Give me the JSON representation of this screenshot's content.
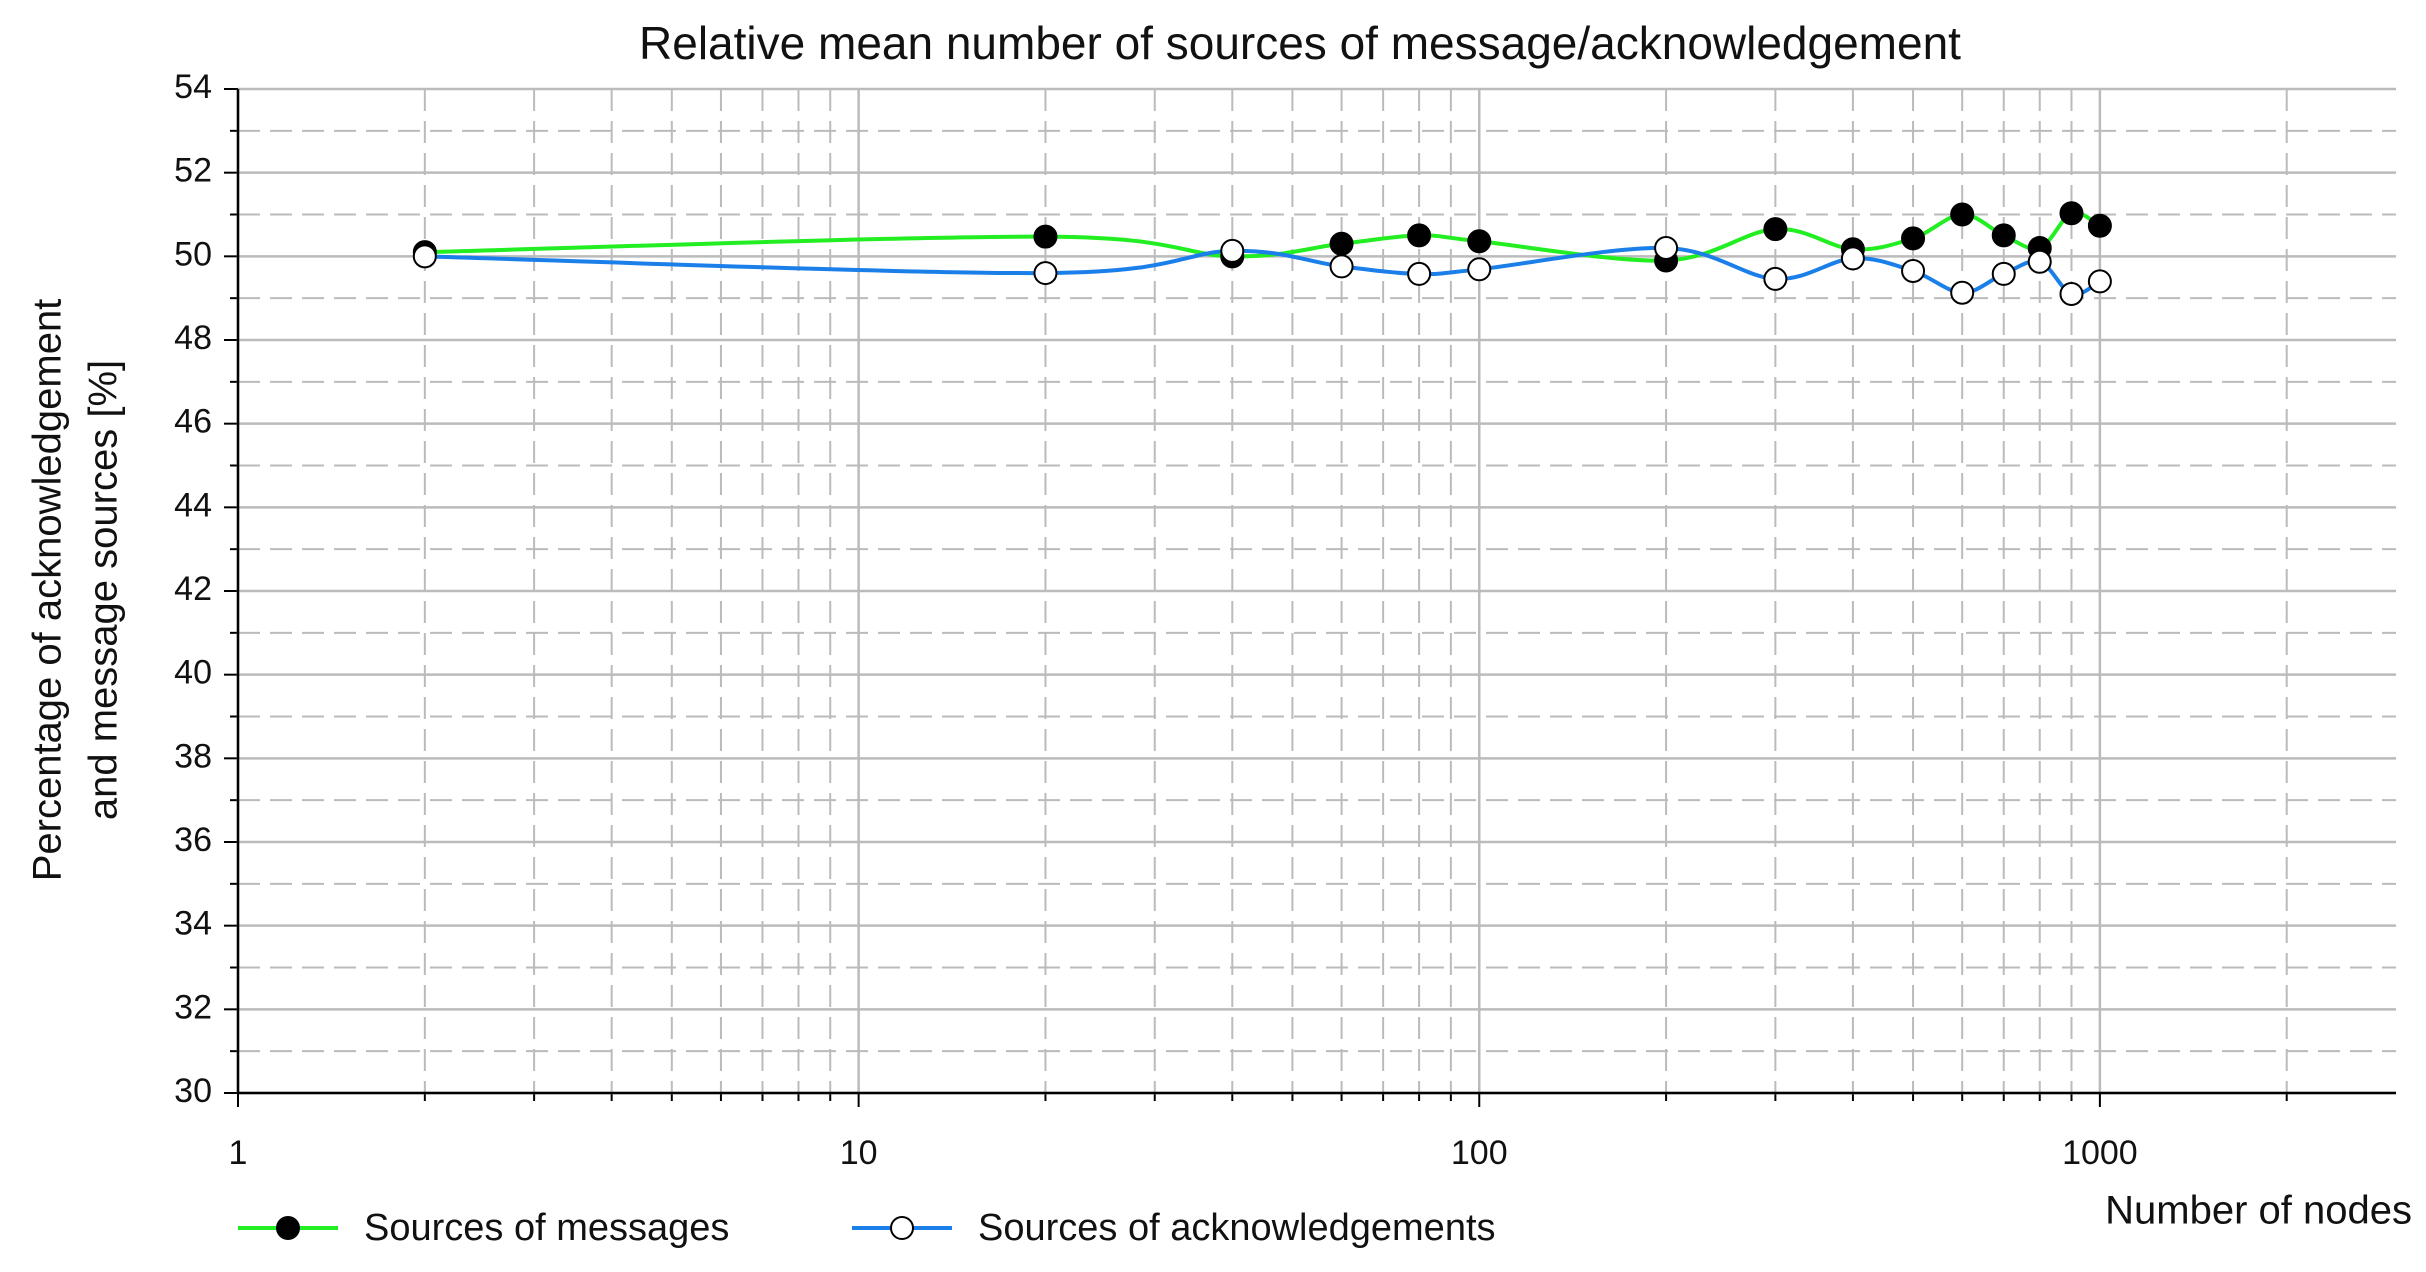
{
  "chart_data": {
    "type": "line",
    "title": "Relative mean number of sources of message/acknowledgement",
    "xlabel": "Number of nodes",
    "ylabel": [
      "Percentage of acknowledgement",
      "and message sources [%]"
    ],
    "x": [
      2,
      20,
      40,
      60,
      80,
      100,
      200,
      300,
      400,
      500,
      600,
      700,
      800,
      900,
      1000
    ],
    "series": [
      {
        "name": "Sources of messages",
        "color": "#22ee22",
        "marker_fill": "#000000",
        "values": [
          50.1,
          50.47,
          50.0,
          50.3,
          50.5,
          50.36,
          49.9,
          50.65,
          50.17,
          50.43,
          51.0,
          50.5,
          50.2,
          51.03,
          50.73
        ]
      },
      {
        "name": "Sources of acknowledgements",
        "color": "#1a7fe8",
        "marker_fill": "#ffffff",
        "values": [
          50.0,
          49.6,
          50.13,
          49.76,
          49.58,
          49.69,
          50.2,
          49.46,
          49.95,
          49.65,
          49.13,
          49.58,
          49.87,
          49.1,
          49.4
        ]
      }
    ],
    "xlim": [
      1,
      3000
    ],
    "xscale": "log",
    "xticks": [
      1,
      10,
      100,
      1000
    ],
    "ylim": [
      30,
      54
    ],
    "yticks": [
      30,
      32,
      34,
      36,
      38,
      40,
      42,
      44,
      46,
      48,
      50,
      52,
      54
    ],
    "grid": true,
    "minor_grid": true,
    "smooth": true
  }
}
